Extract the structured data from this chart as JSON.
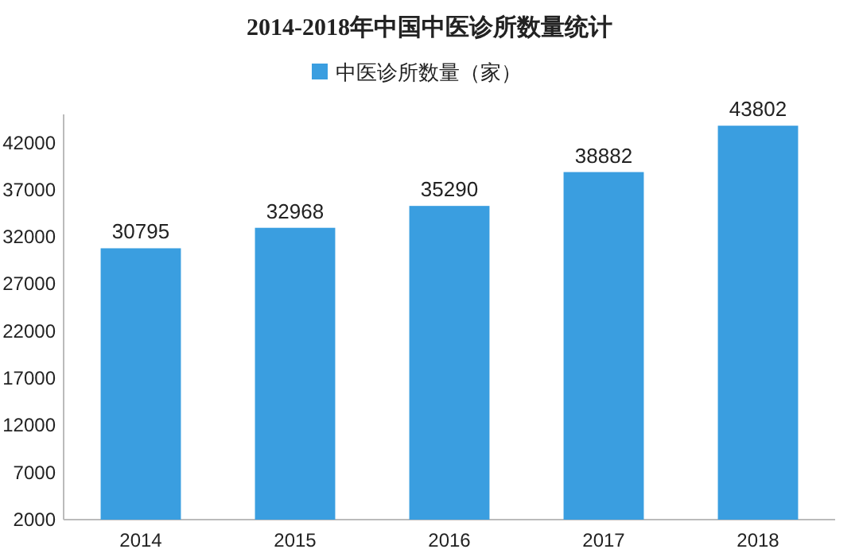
{
  "chart_data": {
    "type": "bar",
    "title": "2014-2018年中国中医诊所数量统计",
    "categories": [
      "2014",
      "2015",
      "2016",
      "2017",
      "2018"
    ],
    "series": [
      {
        "name": "中医诊所数量（家）",
        "color": "#3a9ee0",
        "values": [
          30795,
          32968,
          35290,
          38882,
          43802
        ]
      }
    ],
    "ylim": [
      2000,
      45000
    ],
    "yticks": [
      2000,
      7000,
      12000,
      17000,
      22000,
      27000,
      32000,
      37000,
      42000
    ],
    "data_labels": true,
    "legend": "top",
    "grid": false
  }
}
